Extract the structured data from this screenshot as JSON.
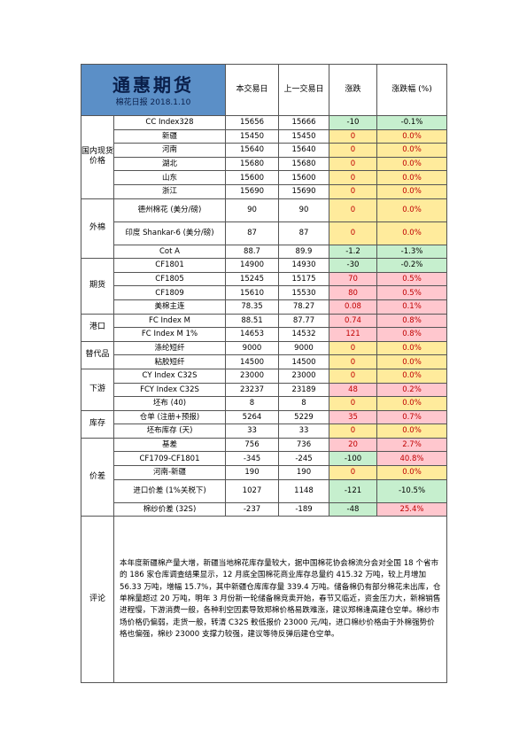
{
  "header": {
    "brand": "通惠期货",
    "subtitle": "棉花日报 2018.1.10",
    "col_today": "本交易日",
    "col_prev": "上一交易日",
    "col_change": "涨跌",
    "col_pct": "涨跌幅 (%)"
  },
  "groups": [
    {
      "name": "国内现货价格",
      "rows": [
        {
          "item": "CC Index328",
          "today": "15656",
          "prev": "15666",
          "change": "-10",
          "pct": "-0.1%",
          "dir": "down"
        },
        {
          "item": "新疆",
          "today": "15450",
          "prev": "15450",
          "change": "0",
          "pct": "0.0%",
          "dir": "flat"
        },
        {
          "item": "河南",
          "today": "15640",
          "prev": "15640",
          "change": "0",
          "pct": "0.0%",
          "dir": "flat"
        },
        {
          "item": "湖北",
          "today": "15680",
          "prev": "15680",
          "change": "0",
          "pct": "0.0%",
          "dir": "flat"
        },
        {
          "item": "山东",
          "today": "15600",
          "prev": "15600",
          "change": "0",
          "pct": "0.0%",
          "dir": "flat"
        },
        {
          "item": "浙江",
          "today": "15690",
          "prev": "15690",
          "change": "0",
          "pct": "0.0%",
          "dir": "flat"
        }
      ]
    },
    {
      "name": "外棉",
      "rows": [
        {
          "item": "德州棉花 (美分/磅)",
          "today": "90",
          "prev": "90",
          "change": "0",
          "pct": "0.0%",
          "dir": "flat",
          "tall": true
        },
        {
          "item": "印度 Shankar-6 (美分/磅)",
          "today": "87",
          "prev": "87",
          "change": "0",
          "pct": "0.0%",
          "dir": "flat",
          "tall": true
        },
        {
          "item": "Cot A",
          "today": "88.7",
          "prev": "89.9",
          "change": "-1.2",
          "pct": "-1.3%",
          "dir": "down"
        }
      ]
    },
    {
      "name": "期货",
      "rows": [
        {
          "item": "CF1801",
          "today": "14900",
          "prev": "14930",
          "change": "-30",
          "pct": "-0.2%",
          "dir": "down"
        },
        {
          "item": "CF1805",
          "today": "15245",
          "prev": "15175",
          "change": "70",
          "pct": "0.5%",
          "dir": "up"
        },
        {
          "item": "CF1809",
          "today": "15610",
          "prev": "15530",
          "change": "80",
          "pct": "0.5%",
          "dir": "up"
        },
        {
          "item": "美棉主连",
          "today": "78.35",
          "prev": "78.27",
          "change": "0.08",
          "pct": "0.1%",
          "dir": "up"
        }
      ]
    },
    {
      "name": "港口",
      "rows": [
        {
          "item": "FC Index M",
          "today": "88.51",
          "prev": "87.77",
          "change": "0.74",
          "pct": "0.8%",
          "dir": "up"
        },
        {
          "item": "FC Index M 1%",
          "today": "14653",
          "prev": "14532",
          "change": "121",
          "pct": "0.8%",
          "dir": "up"
        }
      ]
    },
    {
      "name": "替代品",
      "rows": [
        {
          "item": "涤纶短纤",
          "today": "9000",
          "prev": "9000",
          "change": "0",
          "pct": "0.0%",
          "dir": "flat"
        },
        {
          "item": "粘胶短纤",
          "today": "14500",
          "prev": "14500",
          "change": "0",
          "pct": "0.0%",
          "dir": "flat"
        }
      ]
    },
    {
      "name": "下游",
      "rows": [
        {
          "item": "CY Index C32S",
          "today": "23000",
          "prev": "23000",
          "change": "0",
          "pct": "0.0%",
          "dir": "flat"
        },
        {
          "item": "FCY Index C32S",
          "today": "23237",
          "prev": "23189",
          "change": "48",
          "pct": "0.2%",
          "dir": "up"
        },
        {
          "item": "坯布 (40)",
          "today": "8",
          "prev": "8",
          "change": "0",
          "pct": "0.0%",
          "dir": "flat"
        }
      ]
    },
    {
      "name": "库存",
      "rows": [
        {
          "item": "仓单 (注册+预报)",
          "today": "5264",
          "prev": "5229",
          "change": "35",
          "pct": "0.7%",
          "dir": "up"
        },
        {
          "item": "坯布库存 (天)",
          "today": "33",
          "prev": "33",
          "change": "0",
          "pct": "0.0%",
          "dir": "flat"
        }
      ]
    },
    {
      "name": "价差",
      "rows": [
        {
          "item": "基差",
          "today": "756",
          "prev": "736",
          "change": "20",
          "pct": "2.7%",
          "dir": "up"
        },
        {
          "item": "CF1709-CF1801",
          "today": "-345",
          "prev": "-245",
          "change": "-100",
          "pct": "40.8%",
          "dir": "mixed"
        },
        {
          "item": "河南-新疆",
          "today": "190",
          "prev": "190",
          "change": "0",
          "pct": "0.0%",
          "dir": "flat"
        },
        {
          "item": "进口价差 (1%关税下)",
          "today": "1027",
          "prev": "1148",
          "change": "-121",
          "pct": "-10.5%",
          "dir": "down",
          "tall": true
        },
        {
          "item": "棉纱价差 (32S)",
          "today": "-237",
          "prev": "-189",
          "change": "-48",
          "pct": "25.4%",
          "dir": "mixed"
        }
      ]
    }
  ],
  "comment": {
    "label": "评论",
    "text": "本年度新疆棉产量大增，新疆当地棉花库存量较大，据中国棉花协会棉流分会对全国 18 个省市的 186 家仓库调查结果显示，12 月底全国棉花商业库存总量约 415.32 万吨，较上月增加 56.33 万吨，增幅 15.7%，其中新疆仓库库存量 339.4 万吨。储备棉仍有部分棉花未出库，仓单棉量超过 20 万吨，明年 3 月份新一轮储备棉竞卖开始，春节又临近，资金压力大，新棉销售进程慢，下游消费一般，各种利空因素导致郑棉价格易跌难涨，建议郑棉逢高建仓空单。棉纱市场价格仍偏弱，走货一般，转清 C32S 較低报价 23000 元/吨，进口棉纱价格由于外棉强势价格也偏强，棉纱 23000 支撑力较强，建议等待反弹后建仓空单。"
  }
}
